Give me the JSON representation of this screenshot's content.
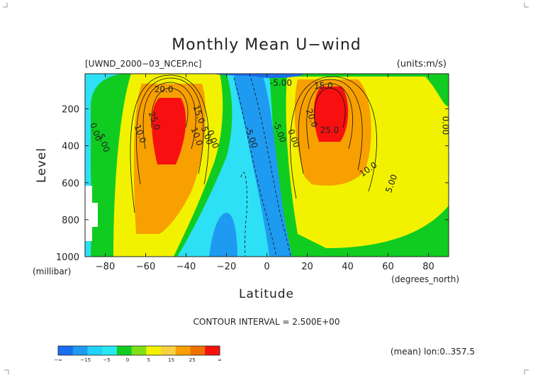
{
  "chart_data": {
    "type": "contour",
    "title": "Monthly Mean U−wind",
    "dataset": "[UWND_2000−03_NCEP.nc]",
    "units": "(units:m/s)",
    "xlabel": "Latitude",
    "x_units": "(degrees_north)",
    "ylabel": "Level",
    "y_units": "(millibar)",
    "xlim": [
      -90,
      90
    ],
    "ylim": [
      1000,
      10
    ],
    "x_ticks": [
      "−80",
      "−60",
      "−40",
      "−20",
      "0",
      "20",
      "40",
      "60",
      "80"
    ],
    "y_ticks": [
      "200",
      "400",
      "600",
      "800",
      "1000"
    ],
    "contour_interval_text": "CONTOUR INTERVAL = 2.500E+00",
    "averaging_text": "(mean) lon:0..357.5",
    "colorbar": {
      "labels": [
        "−∞",
        "−15",
        "−5",
        "0",
        "5",
        "15",
        "25",
        "∞"
      ],
      "colors": [
        "#1a6cf0",
        "#1e9bf0",
        "#22d2f8",
        "#27e8f0",
        "#10cc20",
        "#7fe018",
        "#f2f200",
        "#f8d040",
        "#f8a000",
        "#f07000",
        "#f81010"
      ]
    },
    "contour_labels": [
      {
        "text": "20.0",
        "lat": -51,
        "p": 110,
        "rot": 0
      },
      {
        "text": "25.0",
        "lat": -57,
        "p": 270,
        "rot": 70
      },
      {
        "text": "15.0",
        "lat": -35,
        "p": 235,
        "rot": 70
      },
      {
        "text": "10.0",
        "lat": -64,
        "p": 340,
        "rot": 70
      },
      {
        "text": "10.0",
        "lat": -36,
        "p": 355,
        "rot": 70
      },
      {
        "text": "5.00",
        "lat": -31,
        "p": 350,
        "rot": 70
      },
      {
        "text": "0.00",
        "lat": -28,
        "p": 370,
        "rot": 70
      },
      {
        "text": "5.00",
        "lat": -82,
        "p": 390,
        "rot": 70
      },
      {
        "text": "0.00",
        "lat": -86,
        "p": 330,
        "rot": 70
      },
      {
        "text": "-5.00",
        "lat": -9,
        "p": 360,
        "rot": 70
      },
      {
        "text": "-5.00",
        "lat": 5,
        "p": 330,
        "rot": 70
      },
      {
        "text": "0.00",
        "lat": 12,
        "p": 365,
        "rot": 70
      },
      {
        "text": "-5.00",
        "lat": 7,
        "p": 75,
        "rot": 0
      },
      {
        "text": "15.0",
        "lat": 28,
        "p": 90,
        "rot": 0
      },
      {
        "text": "20.0",
        "lat": 21,
        "p": 255,
        "rot": 70
      },
      {
        "text": "25.0",
        "lat": 31,
        "p": 330,
        "rot": 0
      },
      {
        "text": "10.0",
        "lat": 51,
        "p": 540,
        "rot": -35
      },
      {
        "text": "5.00",
        "lat": 63,
        "p": 610,
        "rot": -70
      },
      {
        "text": "0.00",
        "lat": 87,
        "p": 290,
        "rot": 90
      }
    ]
  }
}
